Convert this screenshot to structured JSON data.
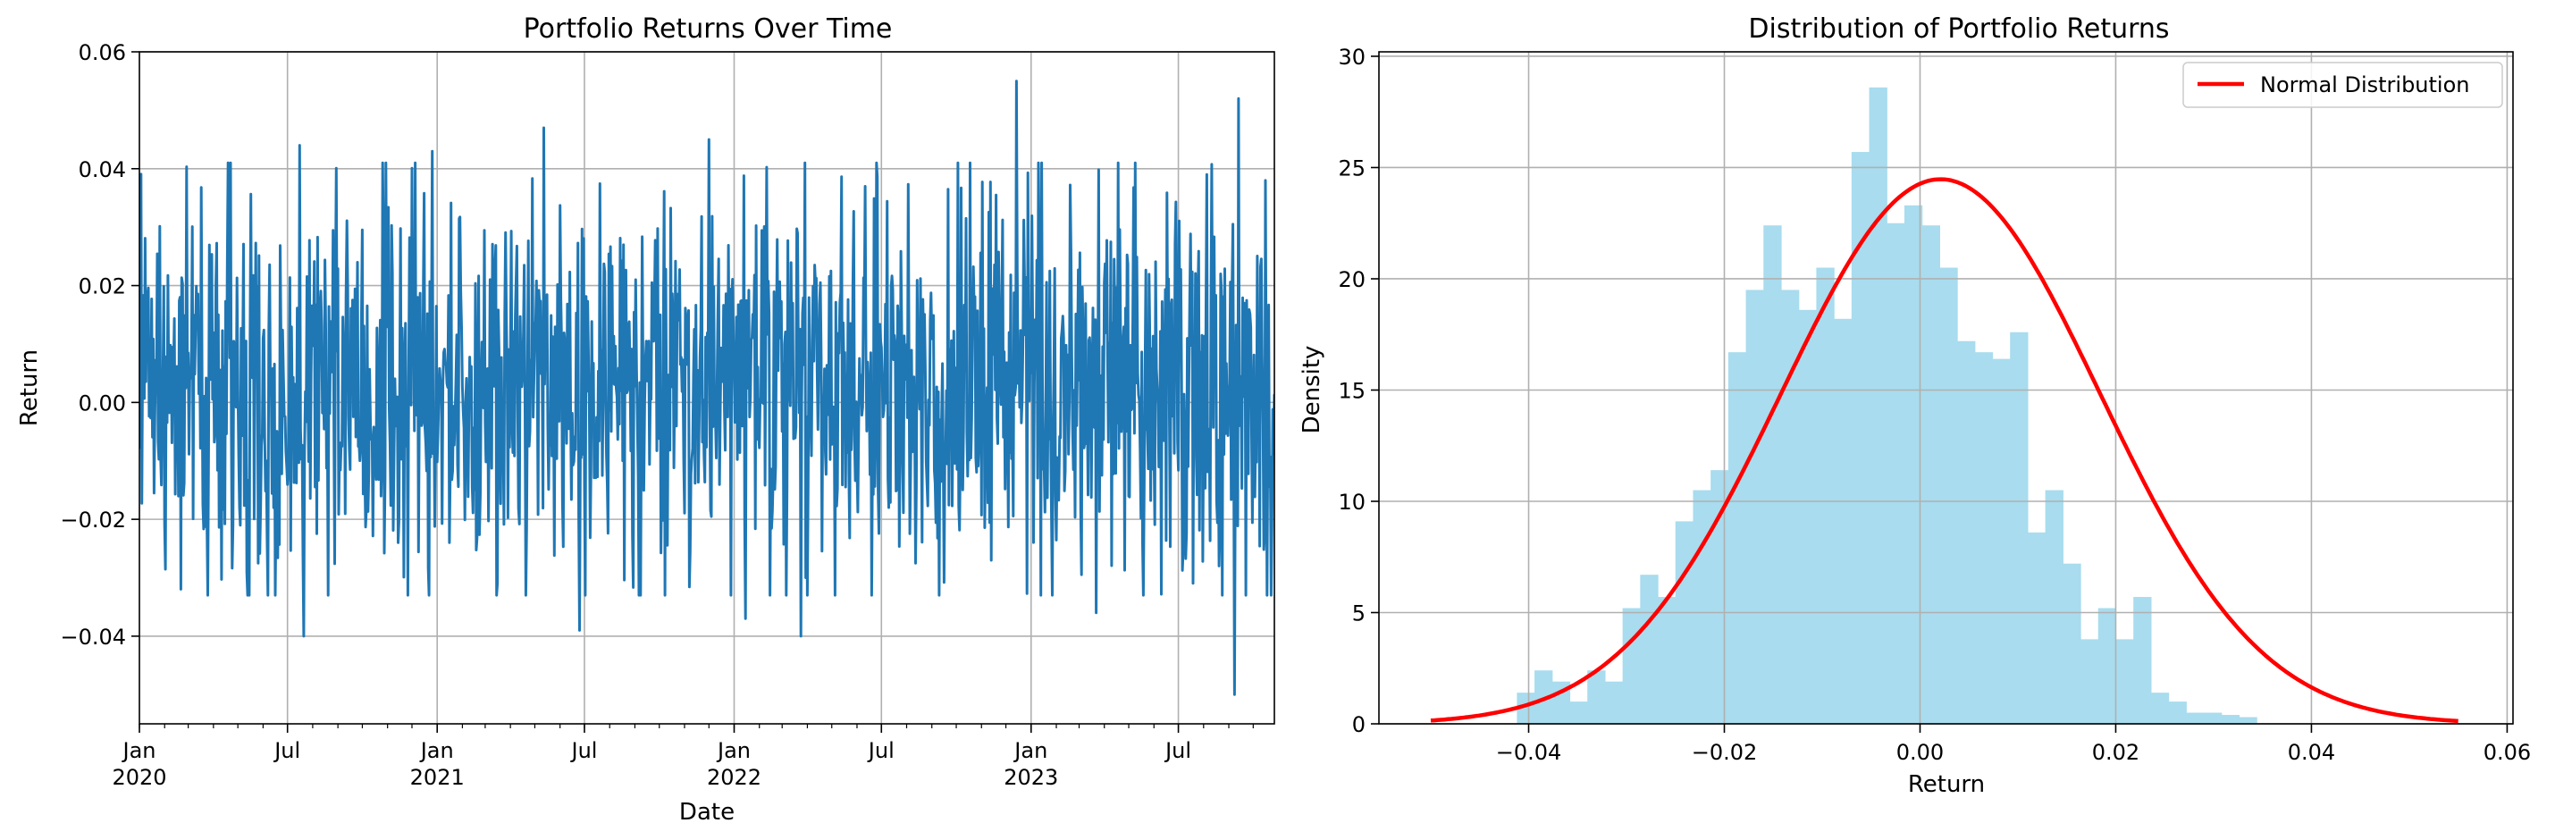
{
  "figure": {
    "panels": 2
  },
  "chart_data": [
    {
      "type": "line",
      "title": "Portfolio Returns Over Time",
      "xlabel": "Date",
      "ylabel": "Return",
      "x_start": "2020-01-01",
      "x_end": "2023-10-27",
      "frequency": "daily",
      "ylim": [
        -0.055,
        0.06
      ],
      "grid": true,
      "line_color": "#1f77b4",
      "x_ticks": [
        {
          "label": "Jan",
          "sublabel": "2020",
          "date": "2020-01-01"
        },
        {
          "label": "Jul",
          "sublabel": "",
          "date": "2020-07-01"
        },
        {
          "label": "Jan",
          "sublabel": "2021",
          "date": "2021-01-01"
        },
        {
          "label": "Jul",
          "sublabel": "",
          "date": "2021-07-01"
        },
        {
          "label": "Jan",
          "sublabel": "2022",
          "date": "2022-01-01"
        },
        {
          "label": "Jul",
          "sublabel": "",
          "date": "2022-07-01"
        },
        {
          "label": "Jan",
          "sublabel": "2023",
          "date": "2023-01-01"
        },
        {
          "label": "Jul",
          "sublabel": "",
          "date": "2023-07-01"
        }
      ],
      "y_ticks": [
        {
          "value": -0.04,
          "label": "−0.04"
        },
        {
          "value": -0.02,
          "label": "−0.02"
        },
        {
          "value": 0.0,
          "label": "0.00"
        },
        {
          "value": 0.02,
          "label": "0.02"
        },
        {
          "value": 0.04,
          "label": "0.04"
        },
        {
          "value": 0.06,
          "label": "0.06"
        }
      ],
      "summary": {
        "mean": 0.0021,
        "std": 0.0163,
        "min": -0.05,
        "max": 0.055
      },
      "notable_points": [
        {
          "date": "2020-01-01",
          "value": 0.029
        },
        {
          "date": "2020-07-16",
          "value": 0.044
        },
        {
          "date": "2020-07-21",
          "value": -0.04
        },
        {
          "date": "2020-12-26",
          "value": 0.043
        },
        {
          "date": "2021-05-12",
          "value": 0.047
        },
        {
          "date": "2021-06-25",
          "value": -0.039
        },
        {
          "date": "2021-12-01",
          "value": 0.045
        },
        {
          "date": "2022-01-15",
          "value": -0.037
        },
        {
          "date": "2022-03-24",
          "value": -0.04
        },
        {
          "date": "2022-12-14",
          "value": 0.055
        },
        {
          "date": "2023-03-22",
          "value": -0.036
        },
        {
          "date": "2023-09-08",
          "value": -0.05
        },
        {
          "date": "2023-09-13",
          "value": 0.052
        },
        {
          "date": "2023-10-16",
          "value": 0.038
        },
        {
          "date": "2023-10-18",
          "value": -0.033
        }
      ]
    },
    {
      "type": "bar",
      "subtype": "histogram",
      "title": "Distribution of Portfolio Returns",
      "xlabel": "Return",
      "ylabel": "Density",
      "xlim": [
        -0.0553,
        0.0606
      ],
      "ylim": [
        0,
        30.2
      ],
      "grid": true,
      "legend_position": "top-right",
      "bar_color": "#a8dcee",
      "bin_start": -0.0412,
      "bin_width": 0.0018,
      "values": [
        1.4,
        2.4,
        1.9,
        1.0,
        2.4,
        1.9,
        5.2,
        6.7,
        5.7,
        9.1,
        10.5,
        11.4,
        16.7,
        19.5,
        22.4,
        19.5,
        18.6,
        20.5,
        18.2,
        25.7,
        28.6,
        22.5,
        23.3,
        22.4,
        20.5,
        17.2,
        16.7,
        16.4,
        17.6,
        8.6,
        10.5,
        7.2,
        3.8,
        5.2,
        3.8,
        5.7,
        1.4,
        1.0,
        0.5,
        0.5,
        0.4,
        0.3
      ],
      "x_ticks": [
        {
          "value": -0.04,
          "label": "−0.04"
        },
        {
          "value": -0.02,
          "label": "−0.02"
        },
        {
          "value": 0.0,
          "label": "0.00"
        },
        {
          "value": 0.02,
          "label": "0.02"
        },
        {
          "value": 0.04,
          "label": "0.04"
        },
        {
          "value": 0.06,
          "label": "0.06"
        }
      ],
      "y_ticks": [
        {
          "value": 0,
          "label": "0"
        },
        {
          "value": 5,
          "label": "5"
        },
        {
          "value": 10,
          "label": "10"
        },
        {
          "value": 15,
          "label": "15"
        },
        {
          "value": 20,
          "label": "20"
        },
        {
          "value": 25,
          "label": "25"
        },
        {
          "value": 30,
          "label": "30"
        }
      ],
      "series": [
        {
          "name": "Normal Distribution",
          "type": "line",
          "color": "#ff0000",
          "mean": 0.0021,
          "std": 0.0163,
          "x_range": [
            -0.05,
            0.055
          ]
        }
      ]
    }
  ]
}
